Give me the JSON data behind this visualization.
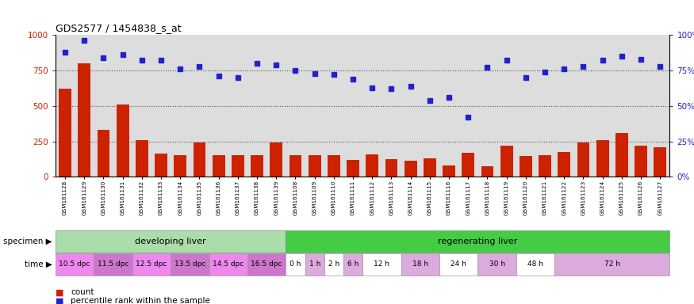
{
  "title": "GDS2577 / 1454838_s_at",
  "samples": [
    "GSM161128",
    "GSM161129",
    "GSM161130",
    "GSM161131",
    "GSM161132",
    "GSM161133",
    "GSM161134",
    "GSM161135",
    "GSM161136",
    "GSM161137",
    "GSM161138",
    "GSM161139",
    "GSM161108",
    "GSM161109",
    "GSM161110",
    "GSM161111",
    "GSM161112",
    "GSM161113",
    "GSM161114",
    "GSM161115",
    "GSM161116",
    "GSM161117",
    "GSM161118",
    "GSM161119",
    "GSM161120",
    "GSM161121",
    "GSM161122",
    "GSM161123",
    "GSM161124",
    "GSM161125",
    "GSM161126",
    "GSM161127"
  ],
  "counts": [
    620,
    800,
    330,
    510,
    260,
    165,
    155,
    240,
    155,
    155,
    155,
    245,
    155,
    155,
    155,
    120,
    160,
    125,
    115,
    130,
    80,
    170,
    75,
    220,
    145,
    155,
    175,
    240,
    260,
    310,
    220,
    210
  ],
  "percentiles": [
    88,
    96,
    84,
    86,
    82,
    82,
    76,
    78,
    71,
    70,
    80,
    79,
    75,
    73,
    72,
    69,
    63,
    62,
    64,
    54,
    56,
    42,
    77,
    82,
    70,
    74,
    76,
    78,
    82,
    85,
    83,
    78
  ],
  "bar_color": "#cc2200",
  "dot_color": "#2222cc",
  "ylim_left": [
    0,
    1000
  ],
  "ylim_right": [
    0,
    100
  ],
  "yticks_left": [
    0,
    250,
    500,
    750,
    1000
  ],
  "yticks_right": [
    0,
    25,
    50,
    75,
    100
  ],
  "ytick_labels_left": [
    "0",
    "250",
    "500",
    "750",
    "1000"
  ],
  "ytick_labels_right": [
    "0%",
    "25%",
    "50%",
    "75%",
    "100%"
  ],
  "grid_lines": [
    250,
    500,
    750
  ],
  "specimen_groups": [
    {
      "label": "developing liver",
      "start": 0,
      "end": 12,
      "color": "#aaddaa"
    },
    {
      "label": "regenerating liver",
      "start": 12,
      "end": 32,
      "color": "#44cc44"
    }
  ],
  "time_groups": [
    {
      "label": "10.5 dpc",
      "start": 0,
      "end": 2,
      "color": "#ee88ee"
    },
    {
      "label": "11.5 dpc",
      "start": 2,
      "end": 4,
      "color": "#cc77cc"
    },
    {
      "label": "12.5 dpc",
      "start": 4,
      "end": 6,
      "color": "#ee88ee"
    },
    {
      "label": "13.5 dpc",
      "start": 6,
      "end": 8,
      "color": "#cc77cc"
    },
    {
      "label": "14.5 dpc",
      "start": 8,
      "end": 10,
      "color": "#ee88ee"
    },
    {
      "label": "16.5 dpc",
      "start": 10,
      "end": 12,
      "color": "#cc77cc"
    },
    {
      "label": "0 h",
      "start": 12,
      "end": 13,
      "color": "#ffffff"
    },
    {
      "label": "1 h",
      "start": 13,
      "end": 14,
      "color": "#ddaadd"
    },
    {
      "label": "2 h",
      "start": 14,
      "end": 15,
      "color": "#ffffff"
    },
    {
      "label": "6 h",
      "start": 15,
      "end": 16,
      "color": "#ddaadd"
    },
    {
      "label": "12 h",
      "start": 16,
      "end": 18,
      "color": "#ffffff"
    },
    {
      "label": "18 h",
      "start": 18,
      "end": 20,
      "color": "#ddaadd"
    },
    {
      "label": "24 h",
      "start": 20,
      "end": 22,
      "color": "#ffffff"
    },
    {
      "label": "30 h",
      "start": 22,
      "end": 24,
      "color": "#ddaadd"
    },
    {
      "label": "48 h",
      "start": 24,
      "end": 26,
      "color": "#ffffff"
    },
    {
      "label": "72 h",
      "start": 26,
      "end": 32,
      "color": "#ddaadd"
    }
  ],
  "legend_count_color": "#cc2200",
  "legend_dot_color": "#2222cc",
  "plot_bg_color": "#dddddd",
  "fig_bg_color": "#ffffff"
}
